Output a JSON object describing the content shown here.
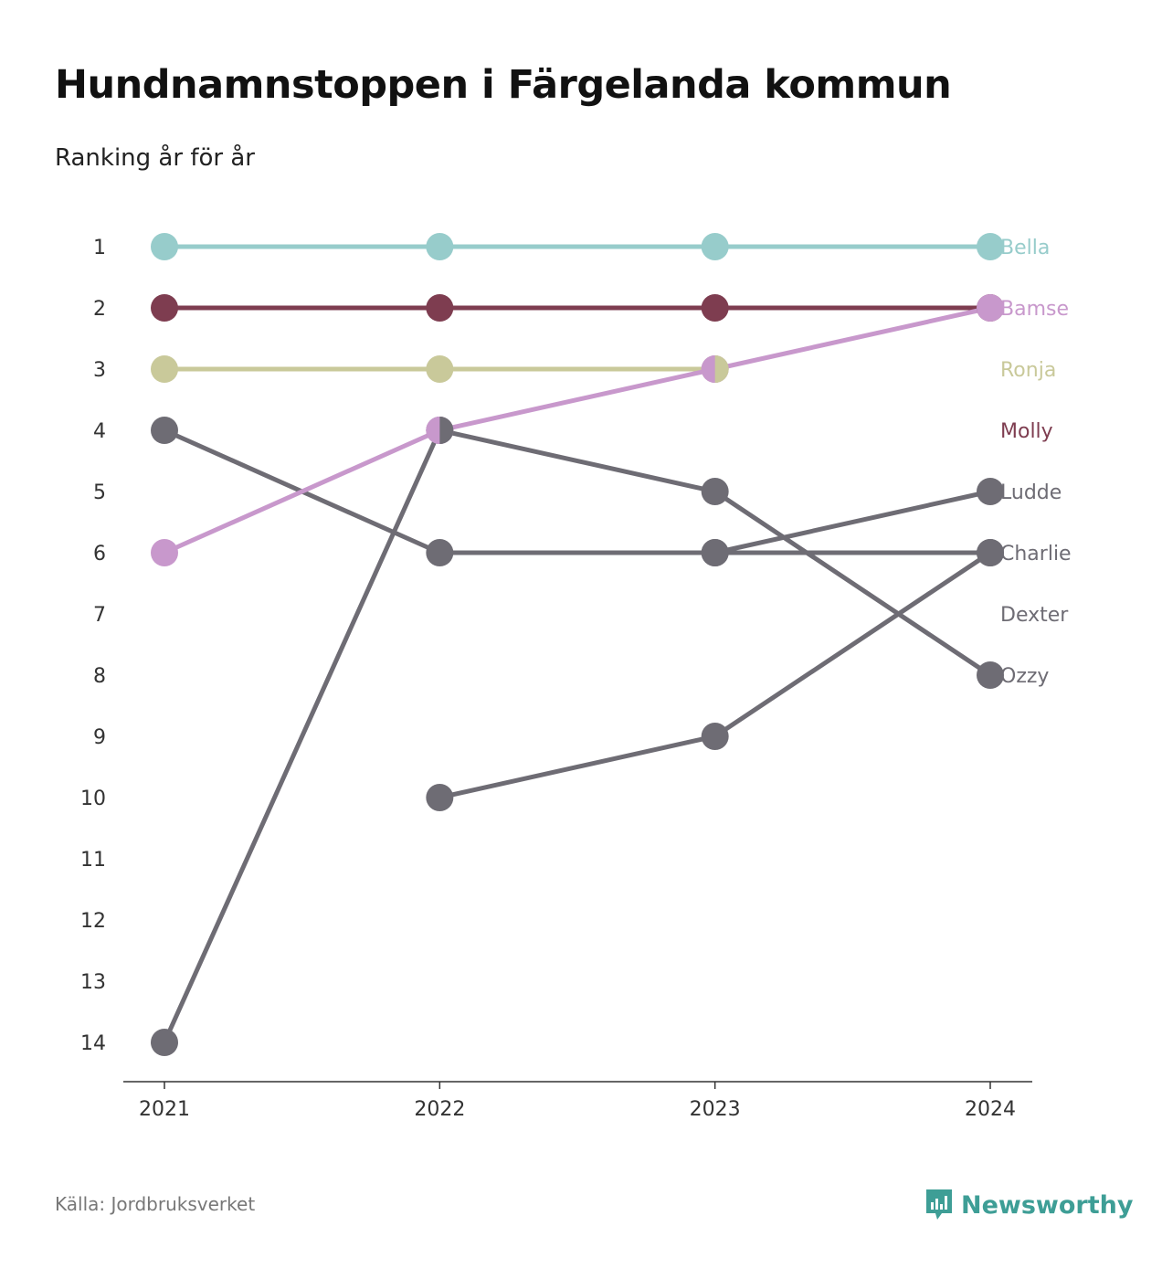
{
  "title": "Hundnamnstoppen i Färgelanda kommun",
  "subtitle": "Ranking år för år",
  "source": "Källa: Jordbruksverket",
  "brand": {
    "name": "Newsworthy",
    "icon": "newsworthy-logo-icon",
    "color": "#3e9e96"
  },
  "colors": {
    "axis": "#333333",
    "tick_text": "#333333",
    "default_series": "#6e6c74"
  },
  "chart_data": {
    "type": "line",
    "x": [
      "2021",
      "2022",
      "2023",
      "2024"
    ],
    "y_ticks": [
      "1",
      "2",
      "3",
      "4",
      "5",
      "6",
      "7",
      "8",
      "9",
      "10",
      "11",
      "12",
      "13",
      "14"
    ],
    "ylim": [
      1,
      14
    ],
    "y_reversed": true,
    "grid": false,
    "series": [
      {
        "name": "Bella",
        "values": [
          1,
          1,
          1,
          1
        ],
        "color": "#97cccb",
        "label_color": "#97cccb"
      },
      {
        "name": "Ozzy",
        "values": [
          14,
          4,
          5,
          8
        ],
        "color": "#6e6c74",
        "label_color": "#6e6c74"
      },
      {
        "name": "Ludde",
        "values": [
          null,
          10,
          9,
          6
        ],
        "color": "#6e6c74",
        "label_color": "#6e6c74"
      },
      {
        "name": "Charlie",
        "values": [
          4,
          6,
          6,
          5
        ],
        "color": "#6e6c74",
        "label_color": "#6e6c74"
      },
      {
        "name": "Dexter",
        "values": [
          null,
          null,
          6,
          6
        ],
        "color": "#6e6c74",
        "label_color": "#6e6c74"
      },
      {
        "name": "Ronja",
        "values": [
          3,
          3,
          3,
          null
        ],
        "color": "#c9c99a",
        "label_color": "#c9c99a"
      },
      {
        "name": "Molly",
        "values": [
          2,
          2,
          2,
          2
        ],
        "color": "#7e3d50",
        "label_color": "#7e3d50"
      },
      {
        "name": "Bamse",
        "values": [
          6,
          4,
          3,
          2
        ],
        "color": "#c898cc",
        "label_color": "#c898cc"
      }
    ],
    "split_markers": [
      {
        "x": "2022",
        "y": 4,
        "left": "#c898cc",
        "right": "#6e6c74"
      },
      {
        "x": "2023",
        "y": 3,
        "left": "#c898cc",
        "right": "#c9c99a"
      }
    ],
    "end_labels": [
      {
        "name": "Bella",
        "row": 1
      },
      {
        "name": "Bamse",
        "row": 2
      },
      {
        "name": "Ronja",
        "row": 3
      },
      {
        "name": "Molly",
        "row": 4
      },
      {
        "name": "Ludde",
        "row": 5
      },
      {
        "name": "Charlie",
        "row": 6
      },
      {
        "name": "Dexter",
        "row": 7
      },
      {
        "name": "Ozzy",
        "row": 8
      }
    ]
  }
}
